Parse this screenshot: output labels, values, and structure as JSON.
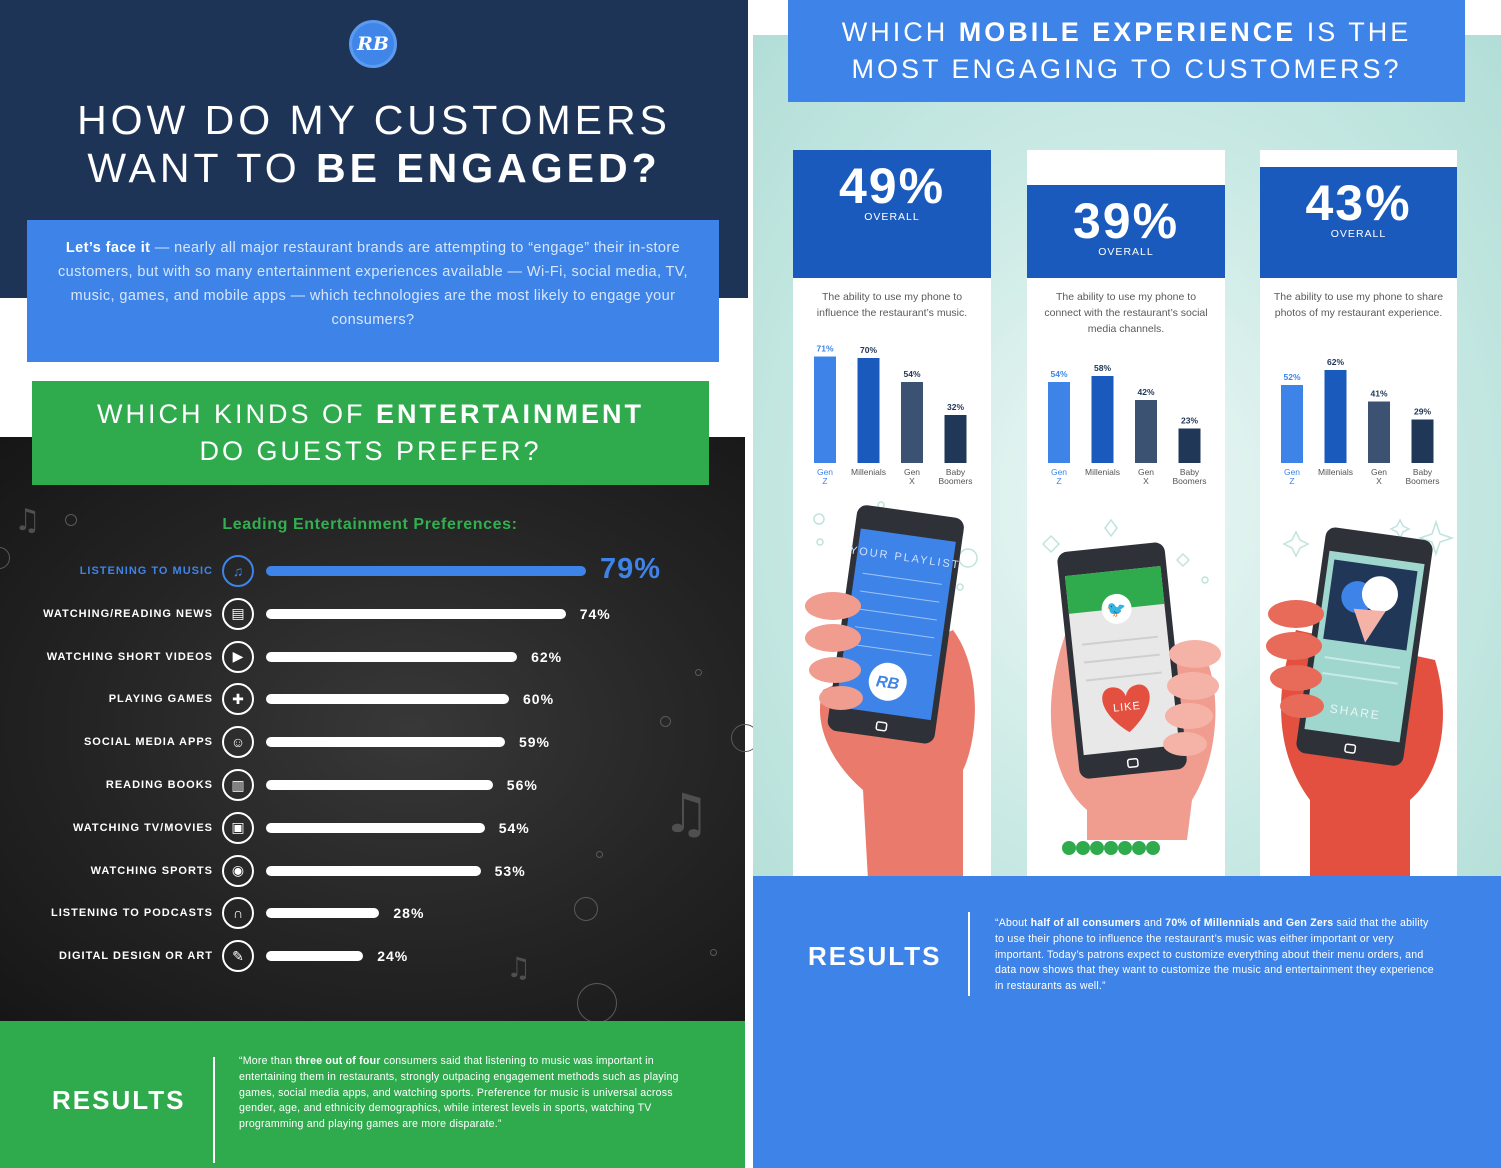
{
  "left": {
    "logo": "RB",
    "title_line1": "HOW DO MY CUSTOMERS",
    "title_line2_pre": "WANT TO ",
    "title_line2_bold": "BE ENGAGED?",
    "intro_bold": "Let’s face it",
    "intro_text": " — nearly all major restaurant brands are attempting to “engage” their in-store customers, but with so many entertainment experiences available — Wi-Fi, social media, TV, music, games, and mobile apps — which technologies are the most likely to engage your consumers?",
    "ent_heading_pre": "WHICH KINDS OF ",
    "ent_heading_bold": "ENTERTAINMENT",
    "ent_heading_line2": "DO GUESTS PREFER?",
    "results_label": "RESULTS",
    "results_quote_pre": "“More than ",
    "results_quote_bold": "three out of four",
    "results_quote_post": " consumers said that listening to music was important in entertaining them in restaurants, strongly outpacing engagement methods such as playing games, social media apps, and watching sports. Preference for music is universal across gender, age, and ethnicity demographics, while interest levels in sports, watching TV programming and playing games are more disparate.”"
  },
  "right": {
    "heading_pre": "WHICH ",
    "heading_bold": "MOBILE EXPERIENCE",
    "heading_post": " IS THE",
    "heading_line2": "MOST ENGAGING TO CUSTOMERS?",
    "overall_label": "OVERALL",
    "playlist_text": "YOUR PLAYLIST",
    "like_text": "LIKE",
    "share_text": "SHARE",
    "results_label": "RESULTS",
    "results_quote_pre": "“About ",
    "results_quote_b1": "half of all consumers",
    "results_quote_mid": " and ",
    "results_quote_b2": "70% of Millennials and Gen Zers",
    "results_quote_post": " said that the ability to use their phone to influence the restaurant’s music was either important or very important. Today’s patrons expect to customize everything about their menu orders, and data now shows that they want to customize the music and entertainment they experience in restaurants as well.”"
  },
  "colors": {
    "navy": "#1e3457",
    "blue": "#3e84e8",
    "green": "#2fab4e",
    "dark_blue": "#1a5abc",
    "slate": "#3b5273",
    "deep_navy": "#213758"
  },
  "chart_data": [
    {
      "type": "bar",
      "orientation": "horizontal",
      "title": "Leading Entertainment Preferences:",
      "categories": [
        "LISTENING TO MUSIC",
        "WATCHING/READING NEWS",
        "WATCHING SHORT VIDEOS",
        "PLAYING GAMES",
        "SOCIAL MEDIA APPS",
        "READING BOOKS",
        "WATCHING TV/MOVIES",
        "WATCHING SPORTS",
        "LISTENING TO PODCASTS",
        "DIGITAL DESIGN OR ART"
      ],
      "values": [
        79,
        74,
        62,
        60,
        59,
        56,
        54,
        53,
        28,
        24
      ],
      "labels": [
        "79%",
        "74%",
        "62%",
        "60%",
        "59%",
        "56%",
        "54%",
        "53%",
        "28%",
        "24%"
      ],
      "icons": [
        "music-note-icon",
        "newspaper-icon",
        "video-player-icon",
        "puzzle-icon",
        "users-icon",
        "book-icon",
        "tv-icon",
        "football-icon",
        "headphones-icon",
        "art-easel-icon"
      ],
      "highlight_index": 0
    },
    {
      "type": "bar",
      "overall": "49%",
      "description": "The ability to use my phone to influence the restaurant’s music.",
      "categories": [
        "Gen Z",
        "Millenials",
        "Gen X",
        "Baby Boomers"
      ],
      "values": [
        71,
        70,
        54,
        32
      ],
      "labels": [
        "71%",
        "70%",
        "54%",
        "32%"
      ],
      "ylim": [
        0,
        75
      ]
    },
    {
      "type": "bar",
      "overall": "39%",
      "description": "The ability to use my phone to connect with the restaurant’s social media channels.",
      "categories": [
        "Gen Z",
        "Millenials",
        "Gen X",
        "Baby Boomers"
      ],
      "values": [
        54,
        58,
        42,
        23
      ],
      "labels": [
        "54%",
        "58%",
        "42%",
        "23%"
      ],
      "ylim": [
        0,
        75
      ]
    },
    {
      "type": "bar",
      "overall": "43%",
      "description": "The ability to use my phone to share photos of my restaurant experience.",
      "categories": [
        "Gen Z",
        "Millenials",
        "Gen X",
        "Baby Boomers"
      ],
      "values": [
        52,
        62,
        41,
        29
      ],
      "labels": [
        "52%",
        "62%",
        "41%",
        "29%"
      ],
      "ylim": [
        0,
        75
      ]
    }
  ]
}
